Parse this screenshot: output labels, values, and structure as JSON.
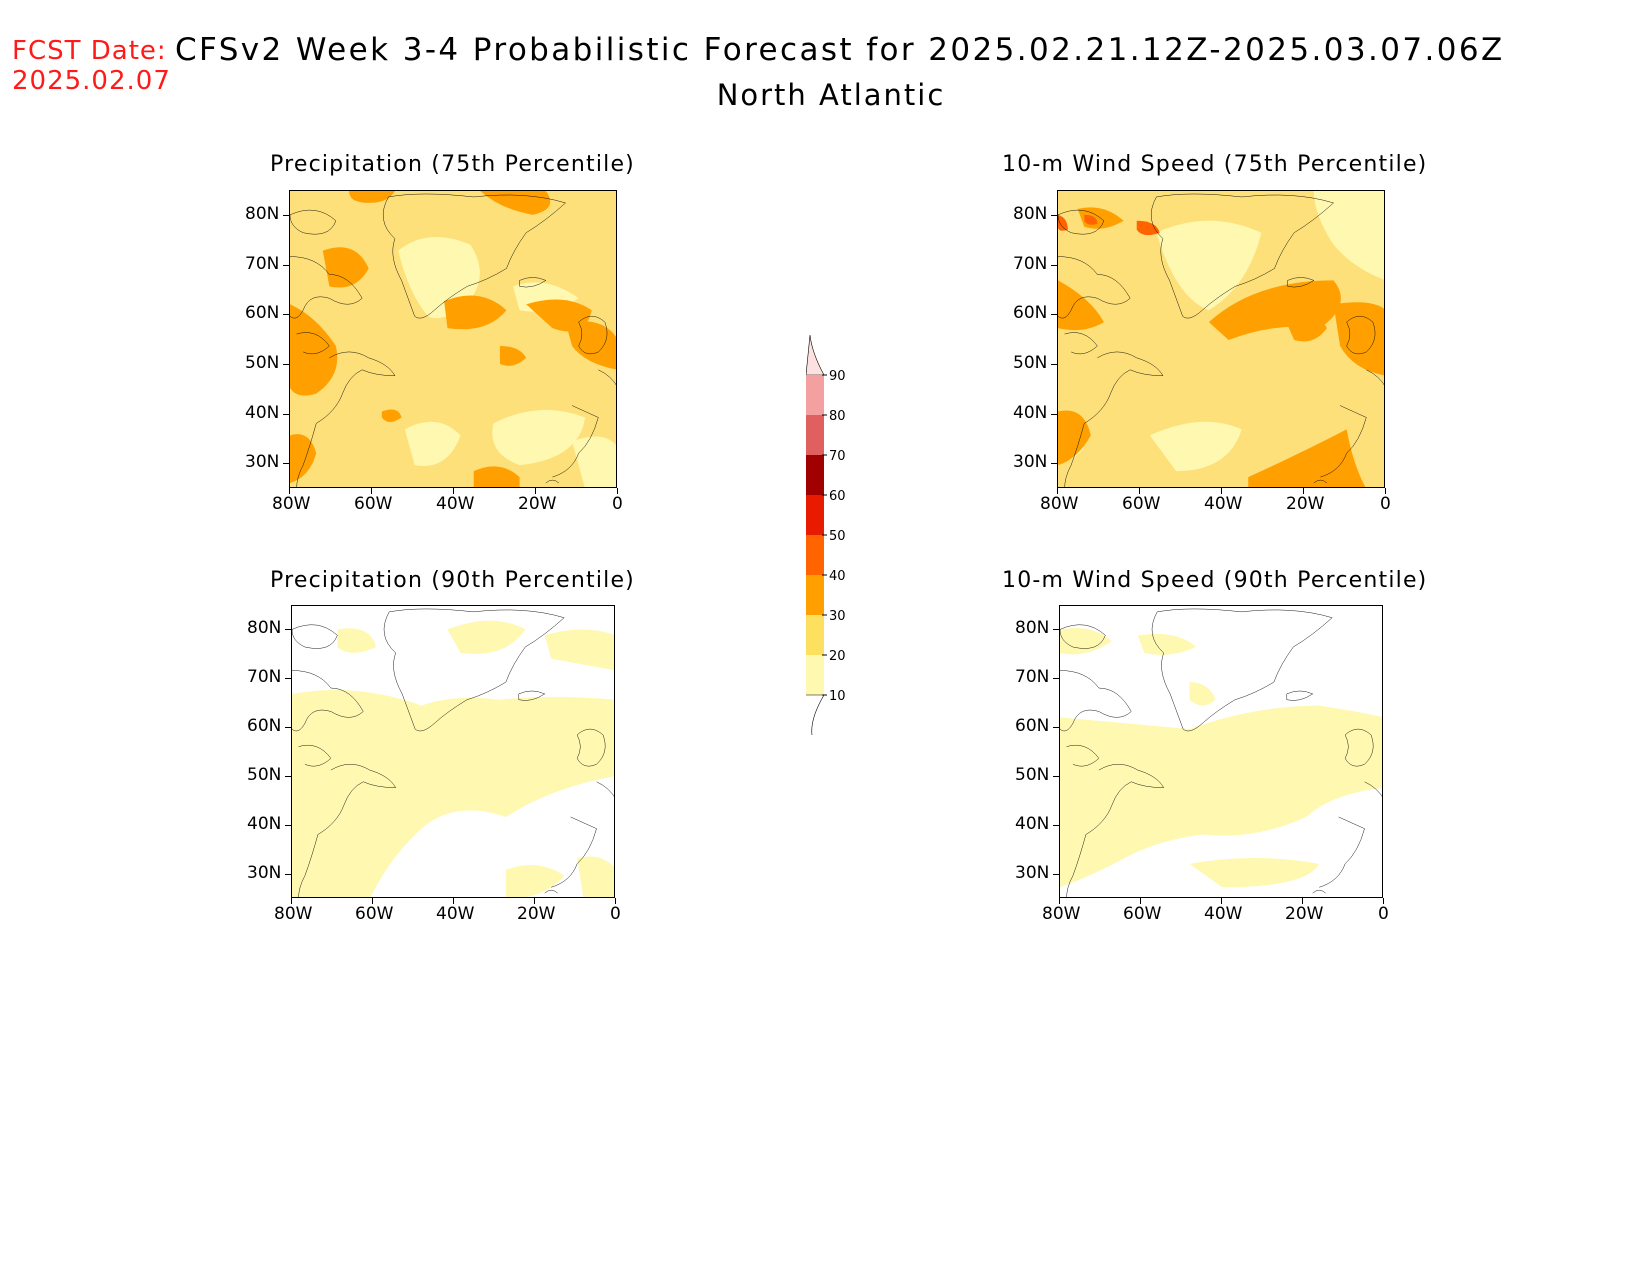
{
  "header": {
    "fcst_label": "FCST Date:",
    "fcst_date": "2025.02.07",
    "title": "CFSv2 Week 3-4 Probabilistic Forecast for 2025.02.21.12Z-2025.03.07.06Z",
    "subtitle": "North Atlantic"
  },
  "axes": {
    "lat_labels": [
      "80N",
      "70N",
      "60N",
      "50N",
      "40N",
      "30N"
    ],
    "lon_labels": [
      "80W",
      "60W",
      "40W",
      "20W",
      "0"
    ]
  },
  "panels": [
    {
      "id": "precip75",
      "title": "Precipitation (75th Percentile)"
    },
    {
      "id": "wind75",
      "title": "10-m Wind Speed (75th Percentile)"
    },
    {
      "id": "precip90",
      "title": "Precipitation (90th Percentile)"
    },
    {
      "id": "wind90",
      "title": "10-m Wind Speed (90th Percentile)"
    }
  ],
  "colorbar": {
    "labels": [
      "90",
      "80",
      "70",
      "60",
      "50",
      "40",
      "30",
      "20",
      "10"
    ],
    "colors": [
      "#fde0e0",
      "#f4a0a0",
      "#e06060",
      "#a00000",
      "#e81a00",
      "#ff6400",
      "#ffa000",
      "#fde060",
      "#fff8b0"
    ]
  },
  "colors": {
    "light": "#fff8b0",
    "mid": "#fde07a",
    "orange": "#ffa000",
    "dark_orange": "#ff6400",
    "fcst_red": "#ff1a1a"
  }
}
